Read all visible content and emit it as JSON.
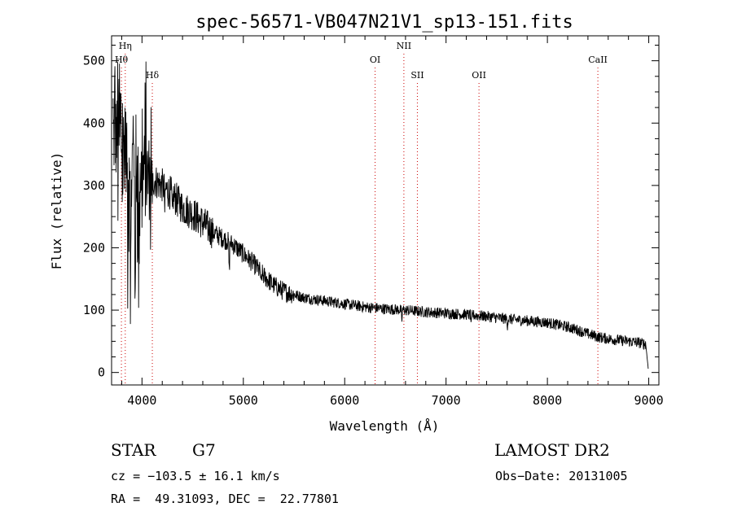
{
  "chart_data": {
    "type": "line",
    "title": "spec-56571-VB047N21V1_sp13-151.fits",
    "xlabel": "Wavelength (Å)",
    "ylabel": "Flux (relative)",
    "xlim": [
      3700,
      9100
    ],
    "ylim": [
      -20,
      540
    ],
    "x_ticks": [
      4000,
      5000,
      6000,
      7000,
      8000,
      9000
    ],
    "y_ticks": [
      0,
      100,
      200,
      300,
      400,
      500
    ],
    "grid": false,
    "line_color": "#000000",
    "marker_color": "#cc0000",
    "continuum": {
      "x": [
        3720,
        3800,
        3900,
        4000,
        4100,
        4200,
        4300,
        4400,
        4500,
        4600,
        4700,
        4800,
        4900,
        5000,
        5100,
        5200,
        5300,
        5400,
        5500,
        5600,
        5800,
        6000,
        6200,
        6400,
        6600,
        6800,
        7000,
        7200,
        7400,
        7600,
        7800,
        8000,
        8200,
        8300,
        8400,
        8500,
        8600,
        8700,
        8800,
        8900,
        8950
      ],
      "y": [
        380,
        370,
        345,
        320,
        310,
        300,
        285,
        265,
        255,
        240,
        225,
        215,
        205,
        190,
        175,
        155,
        140,
        130,
        125,
        120,
        115,
        110,
        105,
        102,
        100,
        97,
        95,
        93,
        90,
        86,
        83,
        80,
        73,
        68,
        62,
        57,
        54,
        52,
        50,
        48,
        46
      ]
    },
    "absorption": [
      {
        "x": 3860,
        "depth": 220
      },
      {
        "x": 3890,
        "depth": 200
      },
      {
        "x": 3934,
        "depth": 270
      },
      {
        "x": 3969,
        "depth": 230
      },
      {
        "x": 4101,
        "depth": 60
      },
      {
        "x": 4226,
        "depth": 40
      },
      {
        "x": 4300,
        "depth": 45
      },
      {
        "x": 4861,
        "depth": 50
      },
      {
        "x": 5175,
        "depth": 25
      },
      {
        "x": 6563,
        "depth": 22
      },
      {
        "x": 7250,
        "depth": 18
      },
      {
        "x": 7605,
        "depth": 10
      }
    ],
    "lines": [
      {
        "name": "Hη",
        "x": 3835,
        "level": 1
      },
      {
        "name": "Hθ",
        "x": 3797,
        "level": 2
      },
      {
        "name": "Hδ",
        "x": 4102,
        "level": 3
      },
      {
        "name": "OI",
        "x": 6300,
        "level": 2
      },
      {
        "name": "NII",
        "x": 6584,
        "level": 1
      },
      {
        "name": "SII",
        "x": 6717,
        "level": 3
      },
      {
        "name": "OII",
        "x": 7325,
        "level": 3
      },
      {
        "name": "CaII",
        "x": 8498,
        "level": 2
      }
    ]
  },
  "info": {
    "object_class": "STAR",
    "subclass": "G7",
    "survey": "LAMOST DR2",
    "cz": "cz = −103.5 ± 16.1 km/s",
    "obs_date": "Obs−Date: 20131005",
    "radec": "RA =  49.31093, DEC =  22.77801"
  }
}
